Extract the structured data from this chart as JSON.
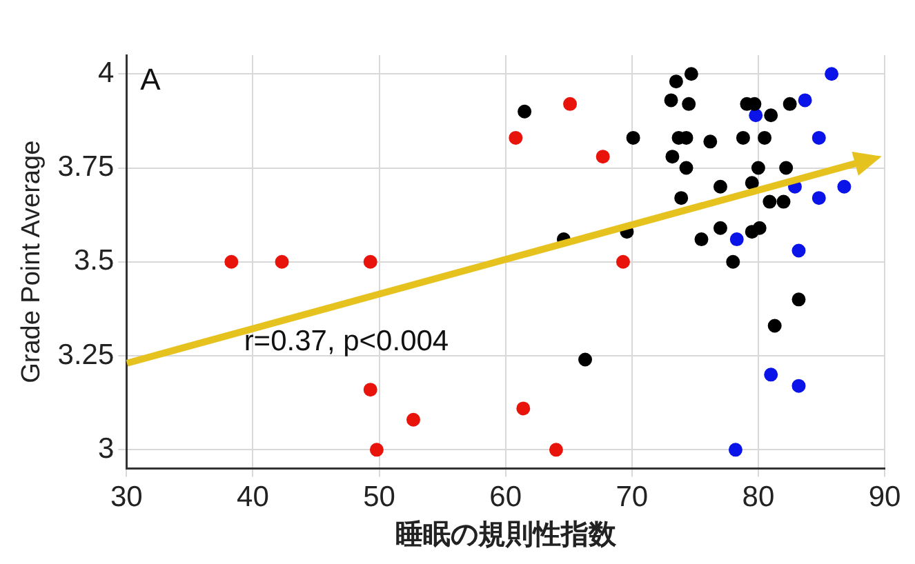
{
  "chart_data": {
    "type": "scatter",
    "xlabel": "睡眠の規則性指数",
    "ylabel": "Grade Point Average",
    "annotations": [
      "A",
      "r=0.37, p<0.004"
    ],
    "xlim": [
      30,
      90
    ],
    "xticks": [
      30,
      40,
      50,
      60,
      70,
      80,
      90
    ],
    "ylim": [
      2.95,
      4.05
    ],
    "yticks": [
      3,
      3.25,
      3.5,
      3.75,
      4
    ],
    "grid": true,
    "marker": "circle",
    "series": [
      {
        "color": "#e8140c",
        "x": [
          38.3,
          42.3,
          49.3,
          49.3,
          52.7,
          49.8,
          65.1,
          60.8,
          67.7,
          69.3,
          61.4,
          64.0
        ],
        "values": [
          3.5,
          3.5,
          3.5,
          3.16,
          3.08,
          3.0,
          3.92,
          3.83,
          3.78,
          3.5,
          3.11,
          3.0
        ]
      },
      {
        "color": "#000000",
        "x": [
          61.5,
          70.1,
          64.6,
          69.6,
          66.3,
          73.5,
          74.7,
          73.1,
          74.5,
          73.7,
          74.3,
          73.2,
          74.3,
          76.2,
          73.9,
          77.0,
          75.5,
          77.0,
          78.0,
          78.8,
          79.1,
          79.7,
          80.5,
          81.0,
          82.5,
          80.0,
          79.5,
          82.2,
          80.9,
          82.0,
          79.5,
          80.1,
          83.2,
          81.3
        ],
        "values": [
          3.9,
          3.83,
          3.56,
          3.58,
          3.24,
          3.98,
          4.0,
          3.93,
          3.92,
          3.83,
          3.83,
          3.78,
          3.75,
          3.82,
          3.67,
          3.7,
          3.56,
          3.59,
          3.5,
          3.83,
          3.92,
          3.92,
          3.83,
          3.89,
          3.92,
          3.75,
          3.71,
          3.75,
          3.66,
          3.66,
          3.58,
          3.59,
          3.4,
          3.33
        ]
      },
      {
        "color": "#0a14e8",
        "x": [
          85.8,
          83.7,
          79.8,
          84.8,
          82.9,
          86.8,
          84.8,
          78.3,
          83.2,
          81.0,
          83.2,
          78.2
        ],
        "values": [
          4.0,
          3.93,
          3.89,
          3.83,
          3.7,
          3.7,
          3.67,
          3.56,
          3.53,
          3.2,
          3.17,
          3.0
        ]
      }
    ]
  }
}
